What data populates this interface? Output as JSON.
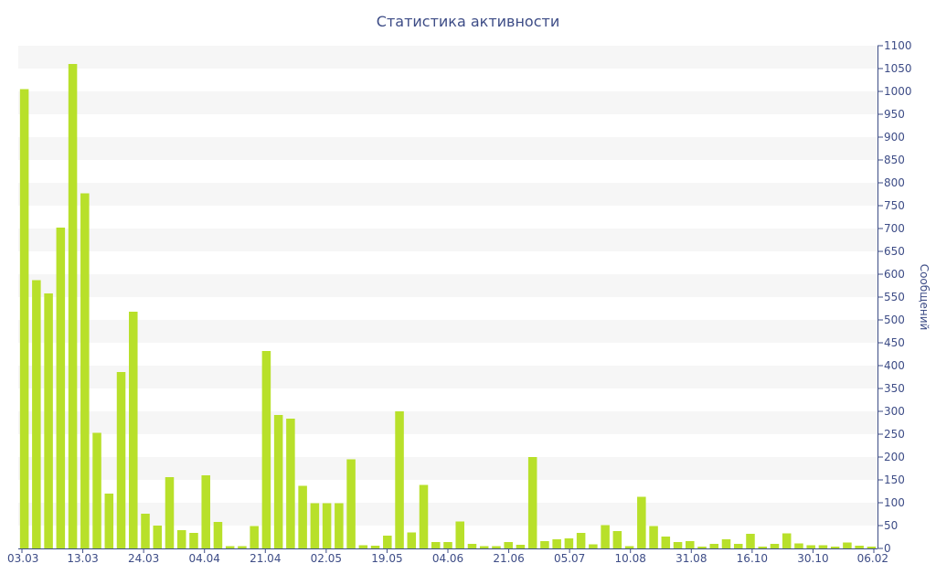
{
  "chart_data": {
    "type": "bar",
    "title": "Статистика активности",
    "ylabel": "Сообщений",
    "xlabel": "",
    "ylim": [
      0,
      1100
    ],
    "ytick_step": 50,
    "grid": "alternating horizontal bands",
    "bar_color": "#b8e02a",
    "band_color": "#f6f6f6",
    "text_color": "#3d4c86",
    "x_tick_labels": [
      "03.03",
      "13.03",
      "24.03",
      "04.04",
      "21.04",
      "02.05",
      "19.05",
      "04.06",
      "21.06",
      "05.07",
      "10.08",
      "31.08",
      "16.10",
      "30.10",
      "06.02"
    ],
    "values": [
      1005,
      587,
      558,
      702,
      1060,
      777,
      253,
      120,
      386,
      518,
      76,
      50,
      156,
      40,
      34,
      160,
      58,
      5,
      5,
      49,
      432,
      292,
      284,
      137,
      99,
      99,
      99,
      195,
      7,
      6,
      28,
      300,
      35,
      139,
      14,
      14,
      59,
      10,
      5,
      5,
      14,
      8,
      200,
      16,
      20,
      22,
      34,
      9,
      51,
      38,
      5,
      113,
      49,
      26,
      14,
      16,
      4,
      10,
      20,
      10,
      32,
      4,
      10,
      33,
      11,
      7,
      7,
      4,
      13,
      6,
      4
    ]
  }
}
